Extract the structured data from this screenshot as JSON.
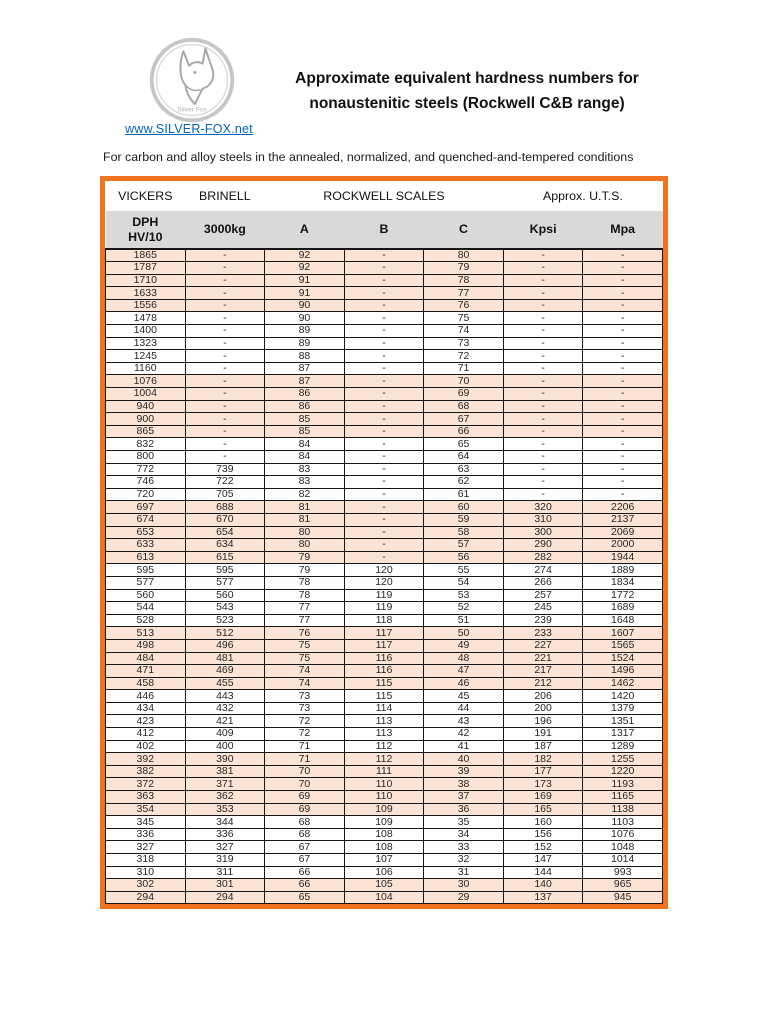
{
  "header": {
    "logo_caption": "Silver Fox",
    "website_link": "www.SILVER-FOX.net",
    "title_line1": "Approximate equivalent hardness numbers for",
    "title_line2": "nonaustenitic steels (Rockwell C&B range)",
    "subtitle": "For carbon and alloy steels in the annealed, normalized, and quenched-and-tempered conditions"
  },
  "colors": {
    "accent_orange": "#f0731f",
    "band_pink": "#fbe4d5",
    "header_gray": "#d9d9d9",
    "link_blue": "#0563c1"
  },
  "table": {
    "group_headers": [
      {
        "label": "VICKERS",
        "span": 1
      },
      {
        "label": "BRINELL",
        "span": 1
      },
      {
        "label": "ROCKWELL SCALES",
        "span": 3
      },
      {
        "label": "Approx. U.T.S.",
        "span": 2
      }
    ],
    "column_headers": [
      "DPH\nHV/10",
      "3000kg",
      "A",
      "B",
      "C",
      "Kpsi",
      "Mpa"
    ],
    "band_group_size": 5,
    "rows": [
      [
        "1865",
        "-",
        "92",
        "-",
        "80",
        "-",
        "-"
      ],
      [
        "1787",
        "-",
        "92",
        "-",
        "79",
        "-",
        "-"
      ],
      [
        "1710",
        "-",
        "91",
        "-",
        "78",
        "-",
        "-"
      ],
      [
        "1633",
        "-",
        "91",
        "-",
        "77",
        "-",
        "-"
      ],
      [
        "1556",
        "-",
        "90",
        "-",
        "76",
        "-",
        "-"
      ],
      [
        "1478",
        "-",
        "90",
        "-",
        "75",
        "-",
        "-"
      ],
      [
        "1400",
        "-",
        "89",
        "-",
        "74",
        "-",
        "-"
      ],
      [
        "1323",
        "-",
        "89",
        "-",
        "73",
        "-",
        "-"
      ],
      [
        "1245",
        "-",
        "88",
        "-",
        "72",
        "-",
        "-"
      ],
      [
        "1160",
        "-",
        "87",
        "-",
        "71",
        "-",
        "-"
      ],
      [
        "1076",
        "-",
        "87",
        "-",
        "70",
        "-",
        "-"
      ],
      [
        "1004",
        "-",
        "86",
        "-",
        "69",
        "-",
        "-"
      ],
      [
        "940",
        "-",
        "86",
        "-",
        "68",
        "-",
        "-"
      ],
      [
        "900",
        "-",
        "85",
        "-",
        "67",
        "-",
        "-"
      ],
      [
        "865",
        "-",
        "85",
        "-",
        "66",
        "-",
        "-"
      ],
      [
        "832",
        "-",
        "84",
        "-",
        "65",
        "-",
        "-"
      ],
      [
        "800",
        "-",
        "84",
        "-",
        "64",
        "-",
        "-"
      ],
      [
        "772",
        "739",
        "83",
        "-",
        "63",
        "-",
        "-"
      ],
      [
        "746",
        "722",
        "83",
        "-",
        "62",
        "-",
        "-"
      ],
      [
        "720",
        "705",
        "82",
        "-",
        "61",
        "-",
        "-"
      ],
      [
        "697",
        "688",
        "81",
        "-",
        "60",
        "320",
        "2206"
      ],
      [
        "674",
        "670",
        "81",
        "-",
        "59",
        "310",
        "2137"
      ],
      [
        "653",
        "654",
        "80",
        "-",
        "58",
        "300",
        "2069"
      ],
      [
        "633",
        "634",
        "80",
        "-",
        "57",
        "290",
        "2000"
      ],
      [
        "613",
        "615",
        "79",
        "-",
        "56",
        "282",
        "1944"
      ],
      [
        "595",
        "595",
        "79",
        "120",
        "55",
        "274",
        "1889"
      ],
      [
        "577",
        "577",
        "78",
        "120",
        "54",
        "266",
        "1834"
      ],
      [
        "560",
        "560",
        "78",
        "119",
        "53",
        "257",
        "1772"
      ],
      [
        "544",
        "543",
        "77",
        "119",
        "52",
        "245",
        "1689"
      ],
      [
        "528",
        "523",
        "77",
        "118",
        "51",
        "239",
        "1648"
      ],
      [
        "513",
        "512",
        "76",
        "117",
        "50",
        "233",
        "1607"
      ],
      [
        "498",
        "496",
        "75",
        "117",
        "49",
        "227",
        "1565"
      ],
      [
        "484",
        "481",
        "75",
        "116",
        "48",
        "221",
        "1524"
      ],
      [
        "471",
        "469",
        "74",
        "116",
        "47",
        "217",
        "1496"
      ],
      [
        "458",
        "455",
        "74",
        "115",
        "46",
        "212",
        "1462"
      ],
      [
        "446",
        "443",
        "73",
        "115",
        "45",
        "206",
        "1420"
      ],
      [
        "434",
        "432",
        "73",
        "114",
        "44",
        "200",
        "1379"
      ],
      [
        "423",
        "421",
        "72",
        "113",
        "43",
        "196",
        "1351"
      ],
      [
        "412",
        "409",
        "72",
        "113",
        "42",
        "191",
        "1317"
      ],
      [
        "402",
        "400",
        "71",
        "112",
        "41",
        "187",
        "1289"
      ],
      [
        "392",
        "390",
        "71",
        "112",
        "40",
        "182",
        "1255"
      ],
      [
        "382",
        "381",
        "70",
        "111",
        "39",
        "177",
        "1220"
      ],
      [
        "372",
        "371",
        "70",
        "110",
        "38",
        "173",
        "1193"
      ],
      [
        "363",
        "362",
        "69",
        "110",
        "37",
        "169",
        "1165"
      ],
      [
        "354",
        "353",
        "69",
        "109",
        "36",
        "165",
        "1138"
      ],
      [
        "345",
        "344",
        "68",
        "109",
        "35",
        "160",
        "1103"
      ],
      [
        "336",
        "336",
        "68",
        "108",
        "34",
        "156",
        "1076"
      ],
      [
        "327",
        "327",
        "67",
        "108",
        "33",
        "152",
        "1048"
      ],
      [
        "318",
        "319",
        "67",
        "107",
        "32",
        "147",
        "1014"
      ],
      [
        "310",
        "311",
        "66",
        "106",
        "31",
        "144",
        "993"
      ],
      [
        "302",
        "301",
        "66",
        "105",
        "30",
        "140",
        "965"
      ],
      [
        "294",
        "294",
        "65",
        "104",
        "29",
        "137",
        "945"
      ]
    ]
  }
}
